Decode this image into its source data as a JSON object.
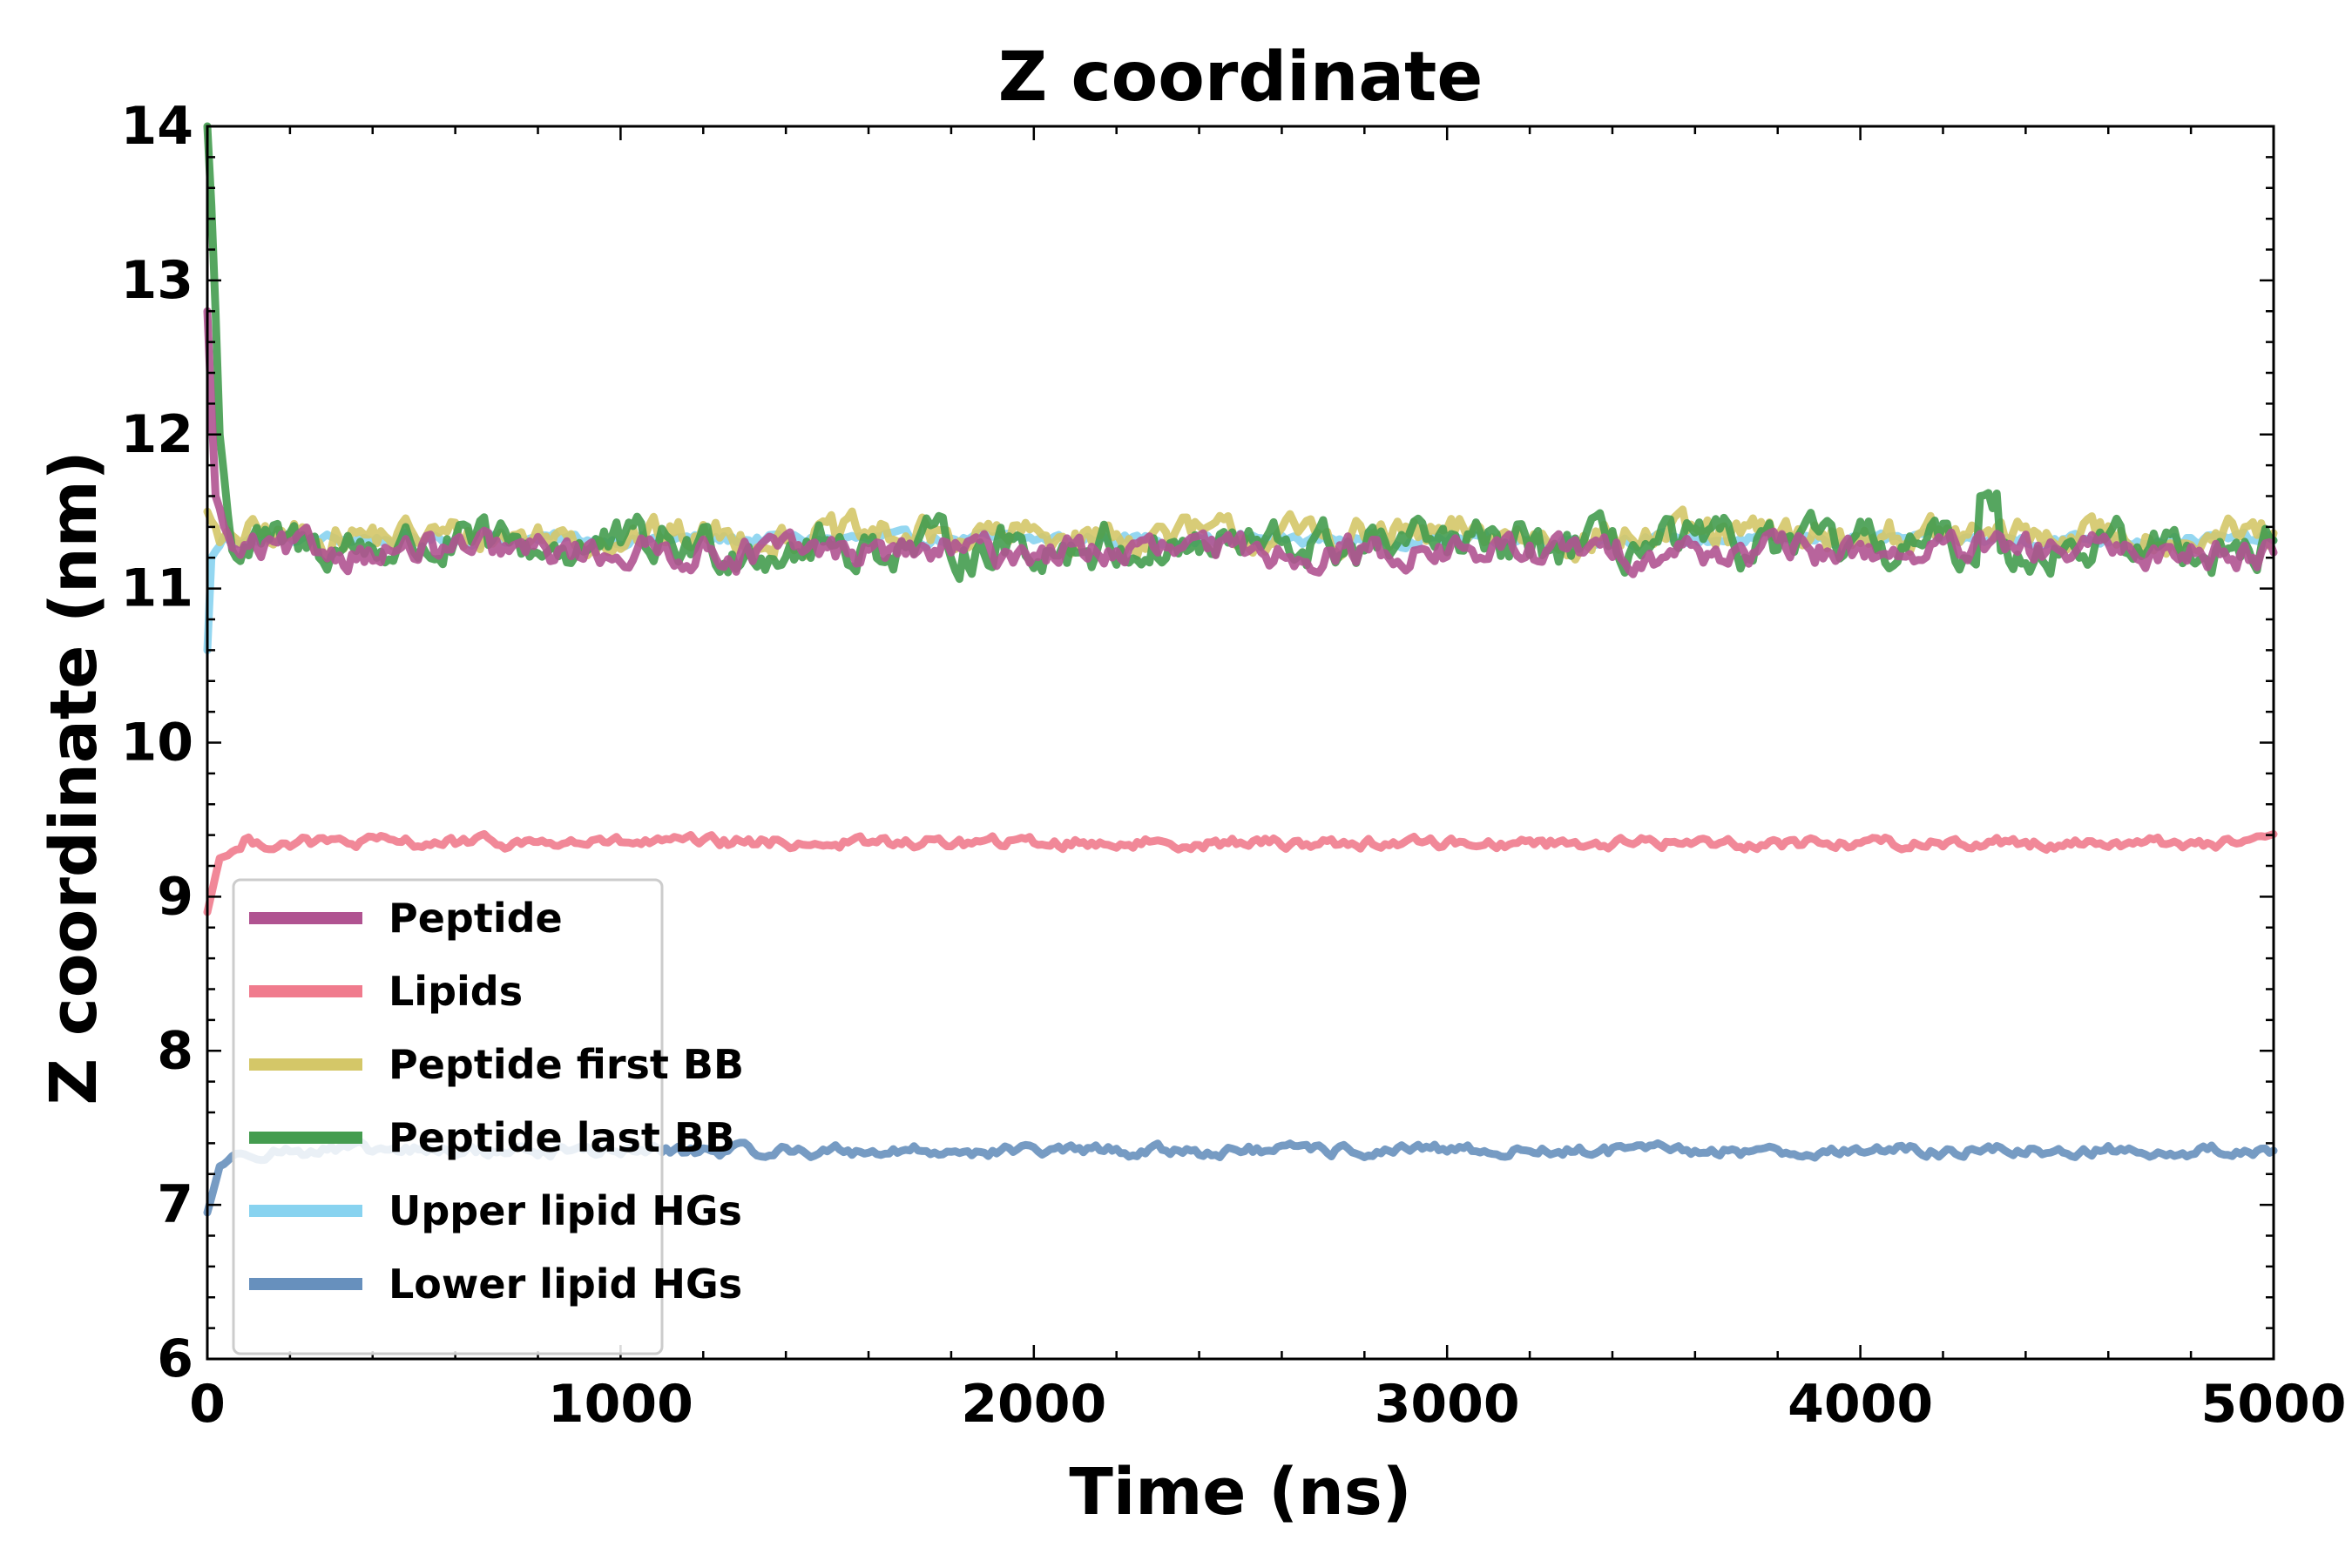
{
  "chart_data": {
    "type": "line",
    "title": "Z coordinate",
    "xlabel": "Time (ns)",
    "ylabel": "Z coordinate (nm)",
    "xlim": [
      0,
      5000
    ],
    "ylim": [
      6,
      14
    ],
    "xticks": [
      0,
      1000,
      2000,
      3000,
      4000,
      5000
    ],
    "yticks": [
      6,
      7,
      8,
      9,
      10,
      11,
      12,
      13,
      14
    ],
    "grid": false,
    "legend_position": "lower-left",
    "series": [
      {
        "name": "Upper lipid HGs",
        "color": "#88d3f0",
        "start": 10.6,
        "mean": 11.32,
        "noise": 0.03,
        "spikes": [
          [
            0,
            10.6
          ],
          [
            10,
            11.2
          ],
          [
            40,
            11.32
          ]
        ]
      },
      {
        "name": "Peptide first BB",
        "color": "#d4c768",
        "start": 11.5,
        "mean": 11.34,
        "noise": 0.09,
        "spikes": [
          [
            0,
            11.5
          ],
          [
            30,
            11.3
          ],
          [
            60,
            11.3
          ]
        ]
      },
      {
        "name": "Peptide last BB",
        "color": "#449c4f",
        "start": 14.0,
        "mean": 11.27,
        "noise": 0.12,
        "spikes": [
          [
            0,
            14.0
          ],
          [
            12,
            13.4
          ],
          [
            30,
            12.0
          ],
          [
            60,
            11.3
          ],
          [
            4290,
            11.6
          ],
          [
            4330,
            11.55
          ],
          [
            5000,
            10.95
          ]
        ]
      },
      {
        "name": "Peptide",
        "color": "#b05391",
        "start": 12.8,
        "mean": 11.24,
        "noise": 0.08,
        "spikes": [
          [
            0,
            12.8
          ],
          [
            20,
            11.6
          ],
          [
            60,
            11.22
          ],
          [
            5000,
            11.05
          ]
        ]
      },
      {
        "name": "Lipids",
        "color": "#f07b8d",
        "start": 8.9,
        "mean": 9.35,
        "noise": 0.03,
        "spikes": [
          [
            0,
            8.9
          ],
          [
            30,
            9.25
          ],
          [
            80,
            9.32
          ]
        ]
      },
      {
        "name": "Lower lipid HGs",
        "color": "#6790bd",
        "start": 6.95,
        "mean": 7.35,
        "noise": 0.03,
        "spikes": [
          [
            0,
            6.95
          ],
          [
            30,
            7.25
          ],
          [
            80,
            7.33
          ]
        ]
      }
    ],
    "legend_order": [
      "Peptide",
      "Lipids",
      "Peptide first BB",
      "Peptide last BB",
      "Upper lipid HGs",
      "Lower lipid HGs"
    ]
  }
}
